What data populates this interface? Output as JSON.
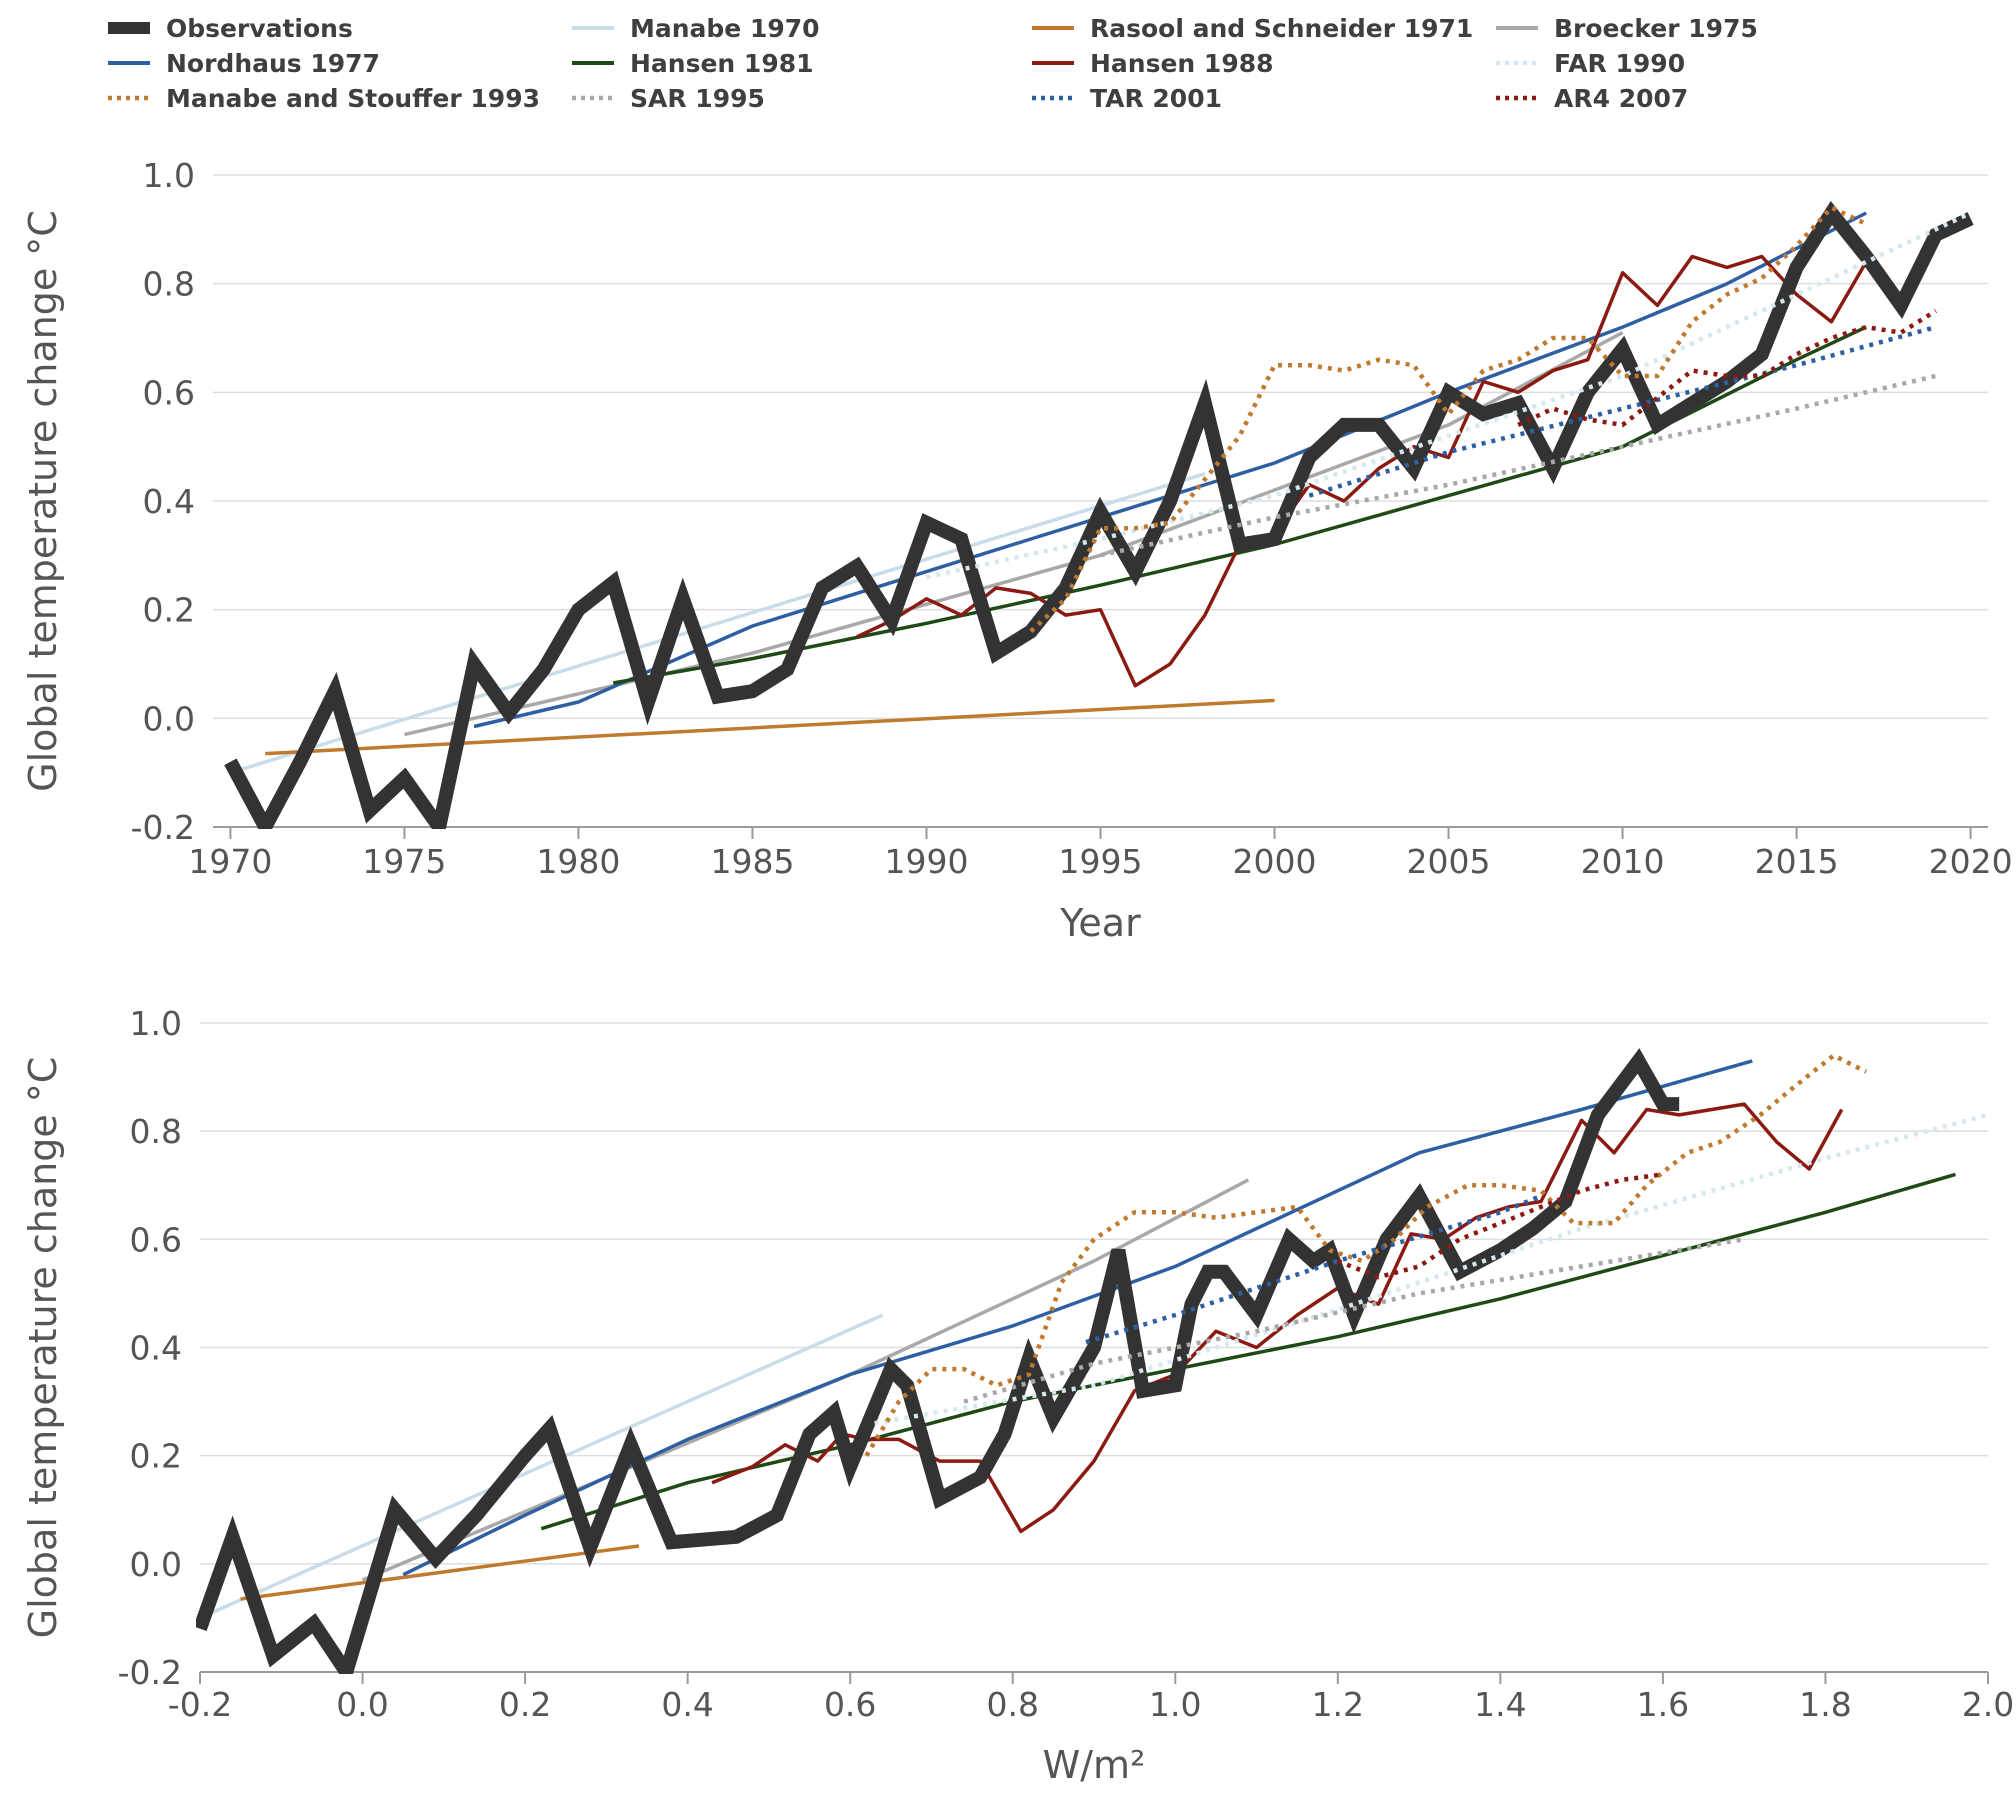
{
  "chart_data": [
    {
      "type": "line",
      "xlabel": "Year",
      "ylabel": "Global temperature change °C",
      "xlim": [
        1969.5,
        2020.5
      ],
      "ylim": [
        -0.2,
        1.0
      ],
      "xticks": [
        "1970",
        "1975",
        "1980",
        "1985",
        "1990",
        "1995",
        "2000",
        "2005",
        "2010",
        "2015",
        "2020"
      ],
      "yticks": [
        "-0.2",
        "0.0",
        "0.2",
        "0.4",
        "0.6",
        "0.8",
        "1.0"
      ],
      "grid": true,
      "legend": "top",
      "series": [
        {
          "name": "Observations",
          "color": "#333333",
          "style": "thick",
          "x": [
            1970,
            1971,
            1972,
            1973,
            1974,
            1975,
            1976,
            1977,
            1978,
            1979,
            1980,
            1981,
            1982,
            1983,
            1984,
            1985,
            1986,
            1987,
            1988,
            1989,
            1990,
            1991,
            1992,
            1993,
            1994,
            1995,
            1996,
            1997,
            1998,
            1999,
            2000,
            2001,
            2002,
            2003,
            2004,
            2005,
            2006,
            2007,
            2008,
            2009,
            2010,
            2011,
            2012,
            2013,
            2014,
            2015,
            2016,
            2017,
            2018,
            2019,
            2020
          ],
          "y": [
            -0.08,
            -0.2,
            -0.08,
            0.05,
            -0.17,
            -0.11,
            -0.2,
            0.1,
            0.01,
            0.09,
            0.2,
            0.25,
            0.03,
            0.22,
            0.04,
            0.05,
            0.09,
            0.24,
            0.28,
            0.18,
            0.36,
            0.33,
            0.12,
            0.16,
            0.24,
            0.38,
            0.27,
            0.4,
            0.58,
            0.32,
            0.33,
            0.48,
            0.54,
            0.54,
            0.46,
            0.6,
            0.56,
            0.58,
            0.46,
            0.6,
            0.68,
            0.54,
            0.58,
            0.62,
            0.67,
            0.83,
            0.93,
            0.85,
            0.76,
            0.89,
            0.92
          ]
        },
        {
          "name": "Manabe 1970",
          "color": "#c9dce9",
          "style": "solid",
          "x": [
            1970,
            1998
          ],
          "y": [
            -0.1,
            0.45
          ]
        },
        {
          "name": "Rasool and Schneider 1971",
          "color": "#c07a2f",
          "style": "solid",
          "x": [
            1971,
            2000
          ],
          "y": [
            -0.065,
            0.033
          ]
        },
        {
          "name": "Broecker 1975",
          "color": "#a8a8a8",
          "style": "solid",
          "x": [
            1975,
            1985,
            1995,
            2005,
            2010
          ],
          "y": [
            -0.03,
            0.12,
            0.3,
            0.54,
            0.71
          ]
        },
        {
          "name": "Nordhaus 1977",
          "color": "#2f5fa3",
          "style": "solid",
          "x": [
            1977,
            1980,
            1985,
            1990,
            1993,
            1995,
            2000,
            2005,
            2010,
            2013,
            2017
          ],
          "y": [
            -0.015,
            0.03,
            0.17,
            0.27,
            0.33,
            0.37,
            0.47,
            0.6,
            0.72,
            0.8,
            0.93
          ]
        },
        {
          "name": "Hansen 1981",
          "color": "#1f4a16",
          "style": "solid",
          "x": [
            1981,
            1985,
            1990,
            1995,
            2000,
            2005,
            2010,
            2015,
            2017
          ],
          "y": [
            0.065,
            0.11,
            0.175,
            0.245,
            0.32,
            0.41,
            0.5,
            0.66,
            0.72
          ]
        },
        {
          "name": "Hansen 1988",
          "color": "#8b1a12",
          "style": "solid",
          "x": [
            1988,
            1989,
            1990,
            1991,
            1992,
            1993,
            1994,
            1995,
            1996,
            1997,
            1998,
            1999,
            2000,
            2001,
            2002,
            2003,
            2004,
            2005,
            2006,
            2007,
            2008,
            2009,
            2010,
            2011,
            2012,
            2013,
            2014,
            2015,
            2016,
            2017
          ],
          "y": [
            0.15,
            0.18,
            0.22,
            0.19,
            0.24,
            0.23,
            0.19,
            0.2,
            0.06,
            0.1,
            0.19,
            0.32,
            0.34,
            0.43,
            0.4,
            0.46,
            0.5,
            0.48,
            0.62,
            0.6,
            0.64,
            0.66,
            0.82,
            0.76,
            0.85,
            0.83,
            0.85,
            0.78,
            0.73,
            0.84
          ]
        },
        {
          "name": "FAR 1990",
          "color": "#d5e7ef",
          "style": "dotted",
          "x": [
            1990,
            1995,
            2000,
            2005,
            2010,
            2015,
            2020
          ],
          "y": [
            0.26,
            0.33,
            0.41,
            0.52,
            0.63,
            0.78,
            0.93
          ]
        },
        {
          "name": "Manabe and Stouffer 1993",
          "color": "#c07a2f",
          "style": "dotted",
          "x": [
            1993,
            1994,
            1995,
            1996,
            1997,
            1998,
            1999,
            2000,
            2001,
            2002,
            2003,
            2004,
            2005,
            2006,
            2007,
            2008,
            2009,
            2010,
            2011,
            2012,
            2013,
            2014,
            2015,
            2016,
            2017
          ],
          "y": [
            0.16,
            0.22,
            0.35,
            0.35,
            0.36,
            0.44,
            0.52,
            0.65,
            0.65,
            0.64,
            0.66,
            0.65,
            0.56,
            0.64,
            0.66,
            0.7,
            0.7,
            0.63,
            0.63,
            0.73,
            0.78,
            0.81,
            0.87,
            0.94,
            0.91
          ]
        },
        {
          "name": "SAR 1995",
          "color": "#a8a8a8",
          "style": "dotted",
          "x": [
            1995,
            2000,
            2005,
            2010,
            2015,
            2019
          ],
          "y": [
            0.3,
            0.37,
            0.43,
            0.5,
            0.57,
            0.63
          ]
        },
        {
          "name": "TAR 2001",
          "color": "#2f5fa3",
          "style": "dotted",
          "x": [
            2001,
            2005,
            2010,
            2015,
            2019
          ],
          "y": [
            0.41,
            0.49,
            0.57,
            0.65,
            0.72
          ]
        },
        {
          "name": "AR4 2007",
          "color": "#8b1a12",
          "style": "dotted",
          "x": [
            2007,
            2008,
            2009,
            2010,
            2011,
            2012,
            2013,
            2014,
            2015,
            2016,
            2017,
            2018,
            2019
          ],
          "y": [
            0.54,
            0.57,
            0.55,
            0.54,
            0.59,
            0.64,
            0.63,
            0.63,
            0.67,
            0.7,
            0.72,
            0.71,
            0.75
          ]
        }
      ]
    },
    {
      "type": "line",
      "xlabel": "W/m²",
      "ylabel": "Global temperature change °C",
      "xlim": [
        -0.2,
        2.0
      ],
      "ylim": [
        -0.2,
        1.0
      ],
      "xticks": [
        "-0.2",
        "0.0",
        "0.2",
        "0.4",
        "0.6",
        "0.8",
        "1.0",
        "1.2",
        "1.4",
        "1.6",
        "1.8",
        "2.0"
      ],
      "yticks": [
        "-0.2",
        "0.0",
        "0.2",
        "0.4",
        "0.6",
        "0.8",
        "1.0"
      ],
      "grid": true,
      "series": [
        {
          "name": "Observations",
          "color": "#333333",
          "style": "thick",
          "x": [
            -0.2,
            -0.16,
            -0.11,
            -0.06,
            -0.02,
            0.04,
            0.09,
            0.14,
            0.2,
            0.23,
            0.28,
            0.33,
            0.38,
            0.46,
            0.51,
            0.55,
            0.58,
            0.6,
            0.65,
            0.67,
            0.71,
            0.76,
            0.79,
            0.82,
            0.85,
            0.9,
            0.93,
            0.96,
            1.0,
            1.02,
            1.04,
            1.06,
            1.1,
            1.14,
            1.17,
            1.19,
            1.22,
            1.26,
            1.3,
            1.35,
            1.4,
            1.44,
            1.48,
            1.52,
            1.57,
            1.6,
            1.62
          ],
          "y": [
            -0.12,
            0.05,
            -0.17,
            -0.11,
            -0.2,
            0.1,
            0.01,
            0.09,
            0.2,
            0.25,
            0.03,
            0.22,
            0.04,
            0.05,
            0.09,
            0.24,
            0.28,
            0.18,
            0.36,
            0.33,
            0.12,
            0.16,
            0.24,
            0.38,
            0.27,
            0.4,
            0.58,
            0.32,
            0.33,
            0.48,
            0.54,
            0.54,
            0.46,
            0.6,
            0.56,
            0.58,
            0.46,
            0.6,
            0.68,
            0.54,
            0.58,
            0.62,
            0.67,
            0.83,
            0.93,
            0.85,
            0.85
          ]
        },
        {
          "name": "Manabe 1970",
          "color": "#c9dce9",
          "style": "solid",
          "x": [
            -0.2,
            0.64
          ],
          "y": [
            -0.1,
            0.46
          ]
        },
        {
          "name": "Rasool and Schneider 1971",
          "color": "#c07a2f",
          "style": "solid",
          "x": [
            -0.15,
            0.34
          ],
          "y": [
            -0.065,
            0.033
          ]
        },
        {
          "name": "Broecker 1975",
          "color": "#a8a8a8",
          "style": "solid",
          "x": [
            0.0,
            0.3,
            0.6,
            0.9,
            1.09
          ],
          "y": [
            -0.03,
            0.16,
            0.35,
            0.56,
            0.71
          ]
        },
        {
          "name": "Nordhaus 1977",
          "color": "#2f5fa3",
          "style": "solid",
          "x": [
            0.05,
            0.2,
            0.4,
            0.6,
            0.8,
            1.0,
            1.2,
            1.3,
            1.5,
            1.71
          ],
          "y": [
            -0.02,
            0.09,
            0.23,
            0.35,
            0.44,
            0.55,
            0.69,
            0.76,
            0.84,
            0.93
          ]
        },
        {
          "name": "Hansen 1981",
          "color": "#1f4a16",
          "style": "solid",
          "x": [
            0.22,
            0.4,
            0.6,
            0.8,
            1.0,
            1.2,
            1.4,
            1.6,
            1.8,
            1.96
          ],
          "y": [
            0.065,
            0.15,
            0.22,
            0.3,
            0.36,
            0.42,
            0.49,
            0.57,
            0.65,
            0.72
          ]
        },
        {
          "name": "Hansen 1988",
          "color": "#8b1a12",
          "style": "solid",
          "x": [
            0.43,
            0.48,
            0.52,
            0.56,
            0.59,
            0.62,
            0.66,
            0.71,
            0.76,
            0.81,
            0.85,
            0.9,
            0.95,
            1.0,
            1.05,
            1.1,
            1.15,
            1.2,
            1.25,
            1.29,
            1.33,
            1.37,
            1.41,
            1.45,
            1.5,
            1.54,
            1.58,
            1.62,
            1.66,
            1.7,
            1.74,
            1.78,
            1.82
          ],
          "y": [
            0.15,
            0.18,
            0.22,
            0.19,
            0.24,
            0.23,
            0.23,
            0.19,
            0.19,
            0.06,
            0.1,
            0.19,
            0.32,
            0.35,
            0.43,
            0.4,
            0.46,
            0.51,
            0.48,
            0.61,
            0.6,
            0.64,
            0.66,
            0.67,
            0.82,
            0.76,
            0.84,
            0.83,
            0.84,
            0.85,
            0.78,
            0.73,
            0.84
          ]
        },
        {
          "name": "FAR 1990",
          "color": "#d5e7ef",
          "style": "dotted",
          "x": [
            0.63,
            0.9,
            1.2,
            1.5,
            1.8,
            2.0
          ],
          "y": [
            0.26,
            0.33,
            0.47,
            0.62,
            0.75,
            0.83
          ]
        },
        {
          "name": "Manabe and Stouffer 1993",
          "color": "#c07a2f",
          "style": "dotted",
          "x": [
            0.62,
            0.66,
            0.7,
            0.74,
            0.78,
            0.82,
            0.86,
            0.9,
            0.95,
            1.0,
            1.05,
            1.1,
            1.15,
            1.19,
            1.23,
            1.27,
            1.31,
            1.36,
            1.4,
            1.45,
            1.49,
            1.54,
            1.58,
            1.63,
            1.67,
            1.72,
            1.76,
            1.81,
            1.85
          ],
          "y": [
            0.2,
            0.3,
            0.36,
            0.36,
            0.33,
            0.35,
            0.52,
            0.6,
            0.65,
            0.65,
            0.64,
            0.65,
            0.66,
            0.58,
            0.56,
            0.6,
            0.66,
            0.7,
            0.7,
            0.69,
            0.63,
            0.63,
            0.7,
            0.76,
            0.78,
            0.83,
            0.88,
            0.94,
            0.91
          ]
        },
        {
          "name": "SAR 1995",
          "color": "#a8a8a8",
          "style": "dotted",
          "x": [
            0.74,
            0.9,
            1.1,
            1.3,
            1.5,
            1.7
          ],
          "y": [
            0.3,
            0.37,
            0.43,
            0.5,
            0.55,
            0.6
          ]
        },
        {
          "name": "TAR 2001",
          "color": "#2f5fa3",
          "style": "dotted",
          "x": [
            0.89,
            1.0,
            1.2,
            1.4,
            1.45
          ],
          "y": [
            0.41,
            0.46,
            0.56,
            0.65,
            0.68
          ]
        },
        {
          "name": "AR4 2007",
          "color": "#8b1a12",
          "style": "dotted",
          "x": [
            1.2,
            1.25,
            1.3,
            1.35,
            1.4,
            1.45,
            1.5,
            1.55,
            1.6
          ],
          "y": [
            0.56,
            0.53,
            0.55,
            0.6,
            0.63,
            0.66,
            0.69,
            0.71,
            0.72
          ]
        }
      ]
    }
  ]
}
